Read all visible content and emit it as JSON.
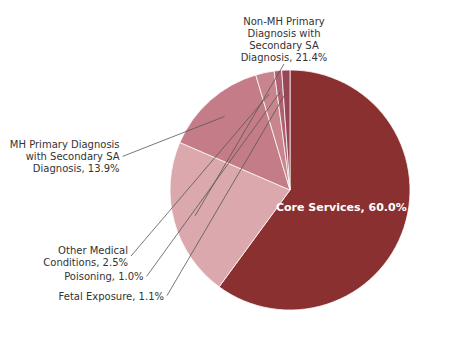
{
  "chart_data": {
    "type": "pie",
    "categories": [
      "Core Services, 60.0%",
      "Non-MH Primary\nDiagnosis with\nSecondary SA\nDiagnosis, 21.4%",
      "MH Primary Diagnosis\nwith Secondary SA\nDiagnosis, 13.9%",
      "Other Medical\nConditions, 2.5%",
      "Poisoning, 1.0%",
      "Fetal Exposure, 1.1%"
    ],
    "values": [
      60.0,
      21.4,
      13.9,
      2.5,
      1.0,
      1.1
    ],
    "colors": [
      "#8b3030",
      "#dba8ae",
      "#c47c88",
      "#c8858e",
      "#b06070",
      "#9a4555"
    ]
  }
}
